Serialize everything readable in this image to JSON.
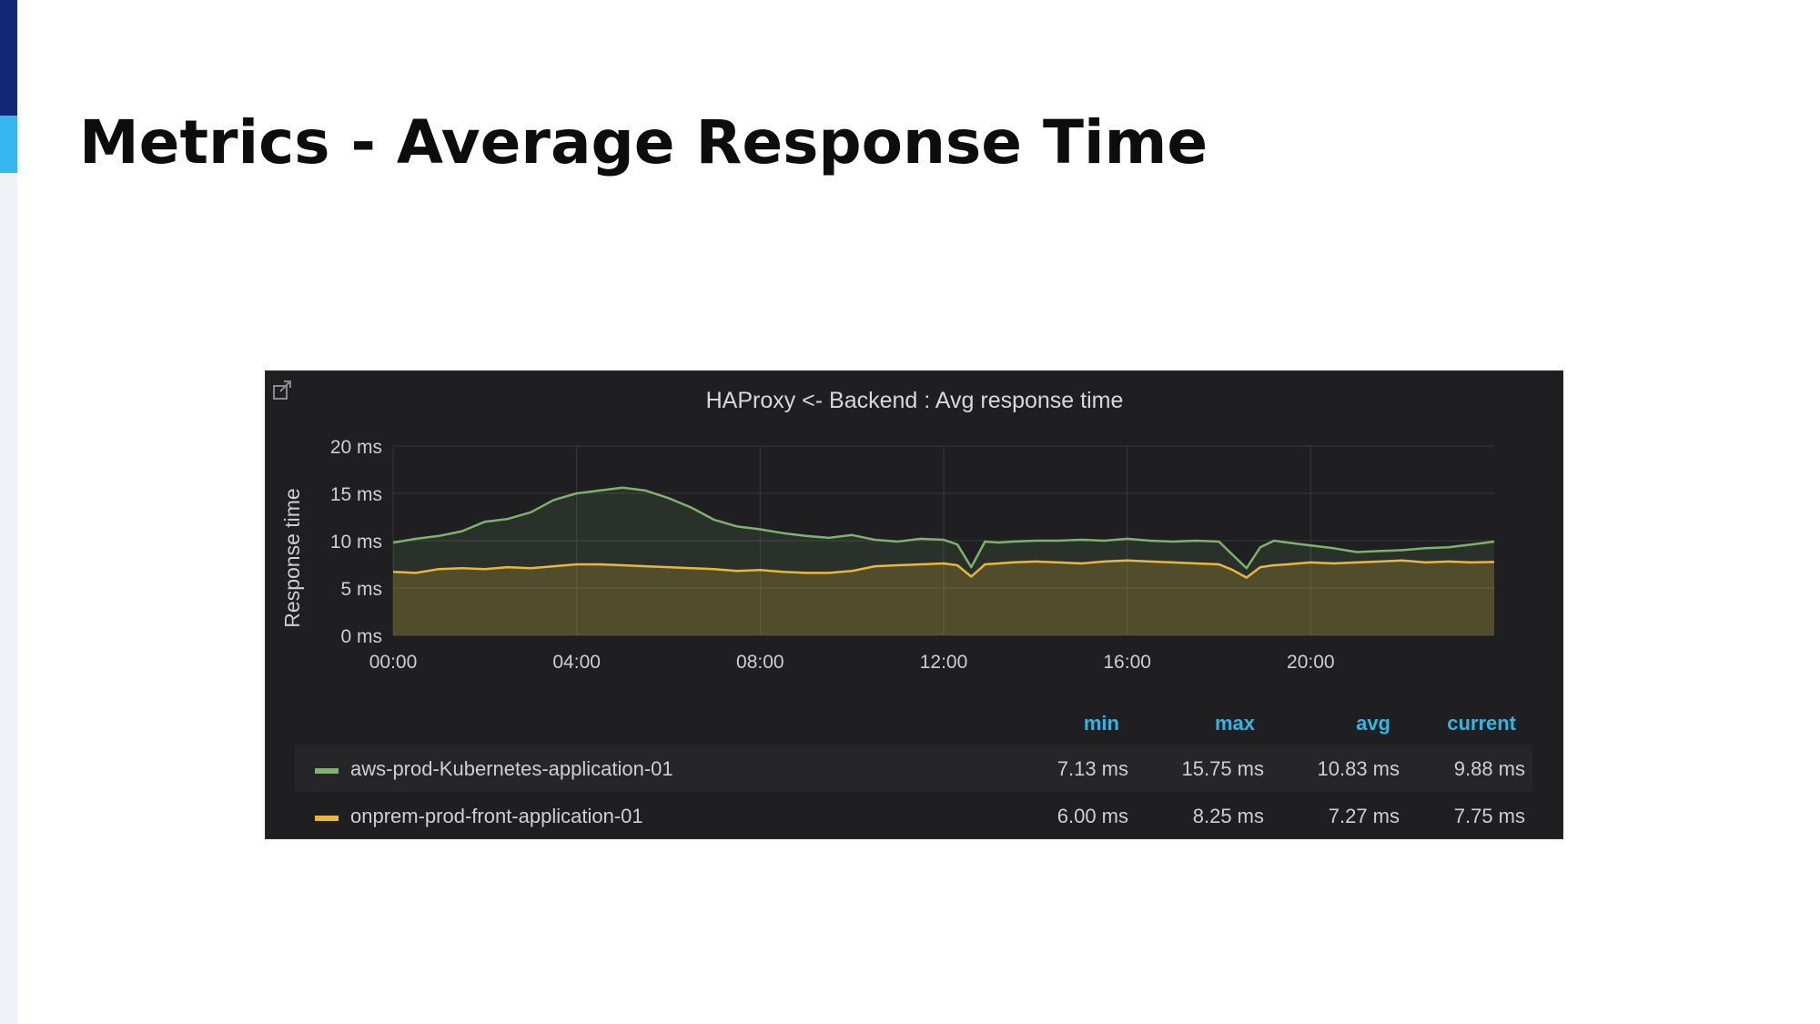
{
  "slide": {
    "title": "Metrics - Average Response Time"
  },
  "panel": {
    "external_link_icon": "external-link-icon"
  },
  "chart_data": {
    "type": "area",
    "title": "HAProxy <- Backend : Avg response time",
    "ylabel": "Response time",
    "xlabel": "",
    "y_unit": "ms",
    "ylim": [
      0,
      20
    ],
    "yticks": [
      "0 ms",
      "5 ms",
      "10 ms",
      "15 ms",
      "20 ms"
    ],
    "xlim": [
      0,
      24
    ],
    "xticks": [
      "00:00",
      "04:00",
      "08:00",
      "12:00",
      "16:00",
      "20:00"
    ],
    "x": [
      0,
      0.5,
      1,
      1.5,
      2,
      2.5,
      3,
      3.5,
      4,
      4.5,
      5,
      5.5,
      6,
      6.5,
      7,
      7.5,
      8,
      8.5,
      9,
      9.5,
      10,
      10.5,
      11,
      11.5,
      12,
      12.3,
      12.6,
      12.9,
      13.2,
      13.5,
      14,
      14.5,
      15,
      15.5,
      16,
      16.5,
      17,
      17.5,
      18,
      18.3,
      18.6,
      18.9,
      19.2,
      19.5,
      20,
      20.5,
      21,
      21.5,
      22,
      22.5,
      23,
      23.5,
      24
    ],
    "series": [
      {
        "name": "aws-prod-Kubernetes-application-01",
        "color": "#7eb26d",
        "values": [
          9.8,
          10.2,
          10.5,
          11.0,
          12.0,
          12.3,
          13.0,
          14.3,
          15.0,
          15.3,
          15.6,
          15.3,
          14.5,
          13.5,
          12.2,
          11.5,
          11.2,
          10.8,
          10.5,
          10.3,
          10.6,
          10.1,
          9.9,
          10.2,
          10.1,
          9.6,
          7.2,
          9.9,
          9.8,
          9.9,
          10.0,
          10.0,
          10.1,
          10.0,
          10.2,
          10.0,
          9.9,
          10.0,
          9.9,
          8.5,
          7.1,
          9.3,
          10.0,
          9.8,
          9.5,
          9.2,
          8.8,
          8.9,
          9.0,
          9.2,
          9.3,
          9.6,
          9.9
        ],
        "min": "7.13 ms",
        "max": "15.75 ms",
        "avg": "10.83 ms",
        "current": "9.88 ms"
      },
      {
        "name": "onprem-prod-front-application-01",
        "color": "#eab839",
        "values": [
          6.7,
          6.6,
          7.0,
          7.1,
          7.0,
          7.2,
          7.1,
          7.3,
          7.5,
          7.5,
          7.4,
          7.3,
          7.2,
          7.1,
          7.0,
          6.8,
          6.9,
          6.7,
          6.6,
          6.6,
          6.8,
          7.3,
          7.4,
          7.5,
          7.6,
          7.4,
          6.2,
          7.5,
          7.6,
          7.7,
          7.8,
          7.7,
          7.6,
          7.8,
          7.9,
          7.8,
          7.7,
          7.6,
          7.5,
          6.9,
          6.1,
          7.2,
          7.4,
          7.5,
          7.7,
          7.6,
          7.7,
          7.8,
          7.9,
          7.7,
          7.8,
          7.7,
          7.75
        ],
        "min": "6.00 ms",
        "max": "8.25 ms",
        "avg": "7.27 ms",
        "current": "7.75 ms"
      }
    ],
    "legend": {
      "columns": [
        "min",
        "max",
        "avg",
        "current"
      ],
      "header_color": "#33b5e5"
    },
    "grid": true
  }
}
